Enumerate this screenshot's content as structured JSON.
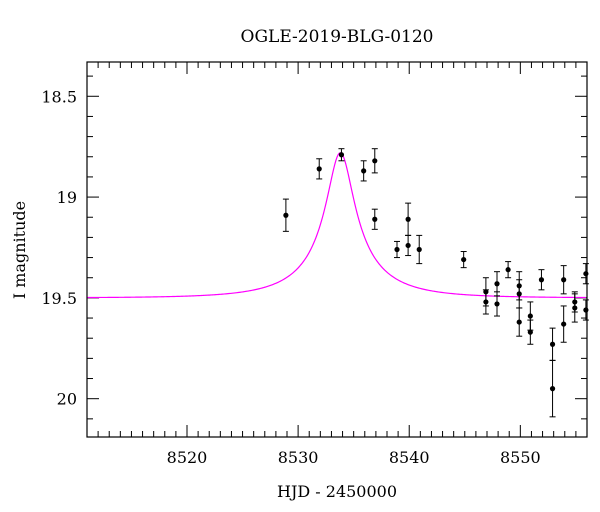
{
  "chart_data": {
    "type": "scatter",
    "title": "OGLE-2019-BLG-0120",
    "xlabel": "HJD - 2450000",
    "ylabel": "I magnitude",
    "xlim": [
      8511,
      8556
    ],
    "ylim": [
      20.19,
      18.33
    ],
    "y_inverted": true,
    "x_major_ticks": [
      8520,
      8530,
      8540,
      8550
    ],
    "x_minor_step": 1,
    "y_major_ticks": [
      18.5,
      19,
      19.5,
      20
    ],
    "y_minor_step": 0.1,
    "grid": false,
    "legend": "none",
    "colors": {
      "points": "#000000",
      "model": "#ff00ff"
    },
    "series": [
      {
        "kind": "points",
        "x": [
          8528.9,
          8531.9,
          8533.9,
          8535.9,
          8536.9,
          8536.9,
          8538.9,
          8539.9,
          8539.9,
          8540.9,
          8544.9,
          8546.9,
          8546.9,
          8547.9,
          8547.9,
          8548.9,
          8549.9,
          8549.9,
          8549.9,
          8550.9,
          8550.9,
          8551.9,
          8552.9,
          8552.9,
          8553.9,
          8553.9,
          8554.9,
          8554.9,
          8555.9,
          8555.9
        ],
        "y": [
          19.09,
          18.86,
          18.79,
          18.87,
          18.82,
          19.11,
          19.26,
          19.24,
          19.11,
          19.26,
          19.31,
          19.47,
          19.52,
          19.43,
          19.53,
          19.36,
          19.44,
          19.48,
          19.62,
          19.59,
          19.67,
          19.41,
          19.73,
          19.95,
          19.41,
          19.63,
          19.52,
          19.55,
          19.38,
          19.56
        ],
        "err": [
          0.08,
          0.05,
          0.03,
          0.05,
          0.06,
          0.05,
          0.04,
          0.05,
          0.08,
          0.07,
          0.04,
          0.07,
          0.06,
          0.06,
          0.06,
          0.04,
          0.07,
          0.07,
          0.07,
          0.07,
          0.06,
          0.05,
          0.08,
          0.14,
          0.07,
          0.09,
          0.05,
          0.07,
          0.05,
          0.05
        ]
      },
      {
        "kind": "model",
        "baseline": 19.5,
        "peak_mag": 18.78,
        "t0": 8533.8,
        "tE": 6.5
      }
    ]
  }
}
